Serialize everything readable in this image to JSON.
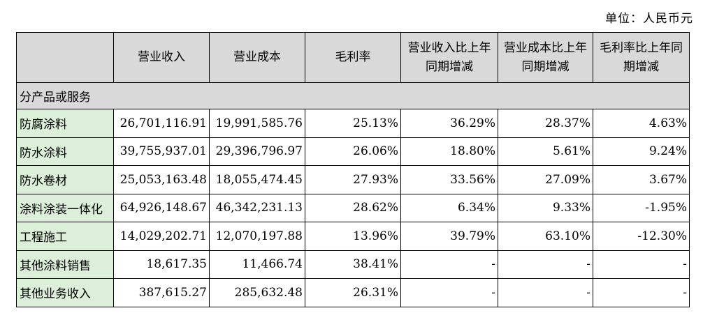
{
  "unit_label": "单位：人民币元",
  "table": {
    "headers": [
      "",
      "营业收入",
      "营业成本",
      "毛利率",
      "营业收入比上年同期增减",
      "营业成本比上年同期增减",
      "毛利率比上年同期增减"
    ],
    "section_label": "分产品或服务",
    "rows": [
      {
        "label": "防腐涂料",
        "cells": [
          "26,701,116.91",
          "19,991,585.76",
          "25.13%",
          "36.29%",
          "28.37%",
          "4.63%"
        ]
      },
      {
        "label": "防水涂料",
        "cells": [
          "39,755,937.01",
          "29,396,796.97",
          "26.06%",
          "18.80%",
          "5.61%",
          "9.24%"
        ]
      },
      {
        "label": "防水卷材",
        "cells": [
          "25,053,163.48",
          "18,055,474.45",
          "27.93%",
          "33.56%",
          "27.09%",
          "3.67%"
        ]
      },
      {
        "label": "涂料涂装一体化",
        "cells": [
          "64,926,148.67",
          "46,342,231.13",
          "28.62%",
          "6.34%",
          "9.33%",
          "-1.95%"
        ]
      },
      {
        "label": "工程施工",
        "cells": [
          "14,029,202.71",
          "12,070,197.88",
          "13.96%",
          "39.79%",
          "63.10%",
          "-12.30%"
        ]
      },
      {
        "label": "其他涂料销售",
        "cells": [
          "18,617.35",
          "11,466.74",
          "38.41%",
          "-",
          "-",
          "-"
        ]
      },
      {
        "label": "其他业务收入",
        "cells": [
          "387,615.27",
          "285,632.48",
          "26.31%",
          "-",
          "-",
          "-"
        ]
      }
    ]
  },
  "colors": {
    "header_bg": "#d9d9d9",
    "row_label_bg": "#dbefd9"
  }
}
